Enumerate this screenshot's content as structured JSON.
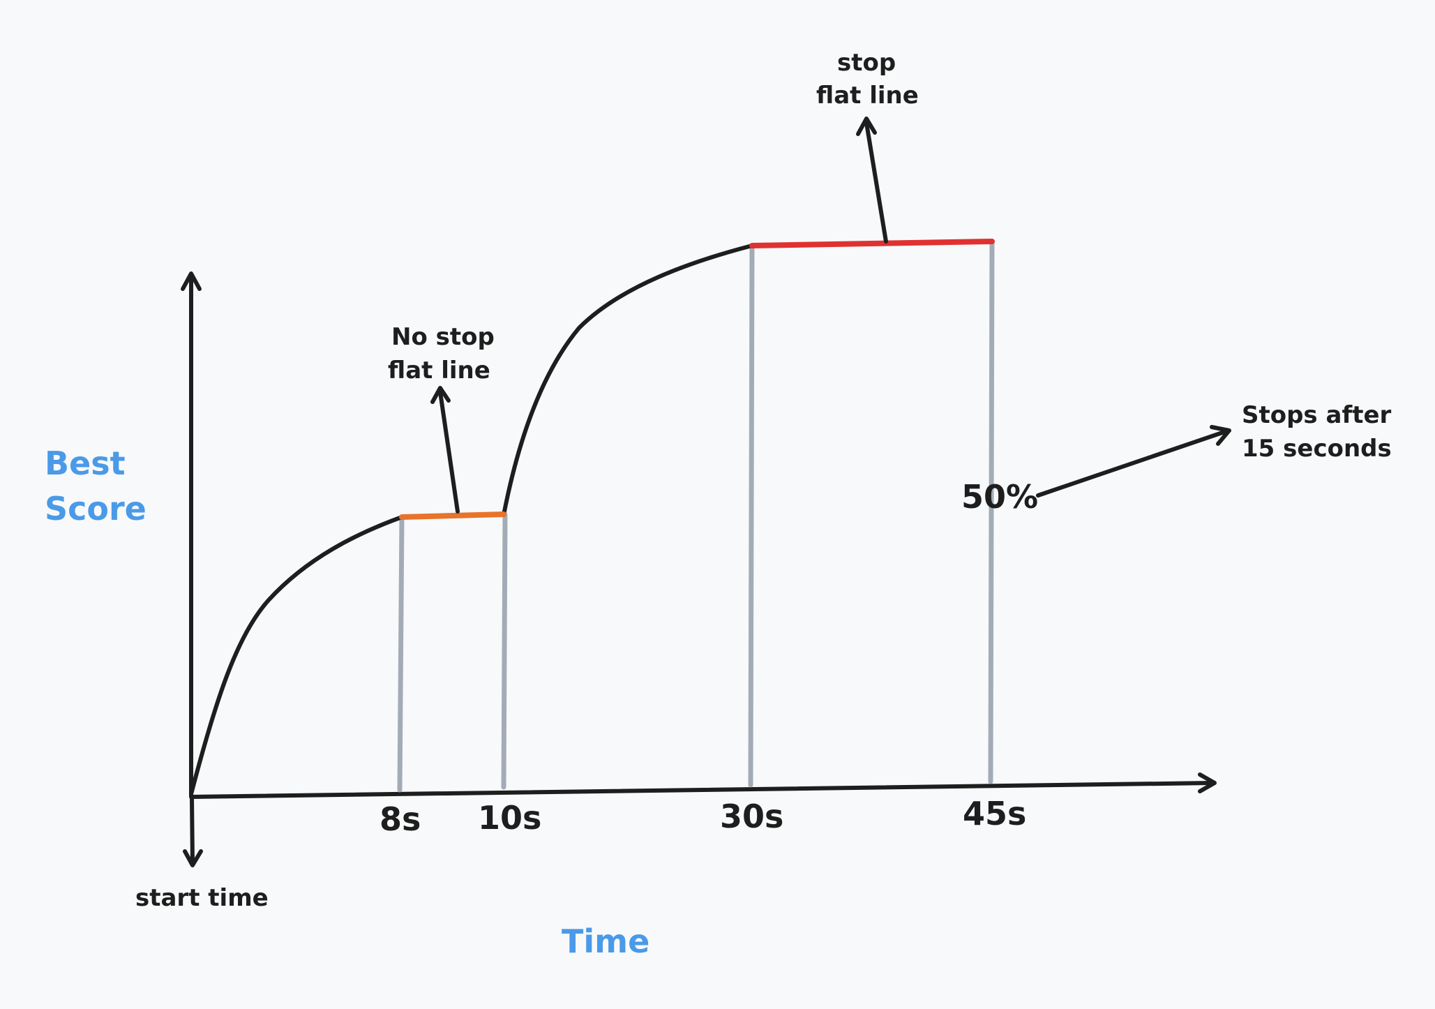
{
  "labels": {
    "y_axis": [
      "Best",
      "Score"
    ],
    "x_axis": "Time",
    "start_time": "start time",
    "no_stop": [
      "No stop",
      "flat line"
    ],
    "stop": [
      "stop",
      "flat line"
    ],
    "stops_after": [
      "Stops after",
      "15 seconds"
    ],
    "percent": "50%"
  },
  "ticks": [
    "8s",
    "10s",
    "30s",
    "45s"
  ],
  "colors": {
    "curve": "#1e1e1e",
    "guide_lines": "#a3acb6",
    "no_stop_segment": "#e8732a",
    "stop_segment": "#e03131",
    "axis_titles": "#4a9ae8"
  }
}
